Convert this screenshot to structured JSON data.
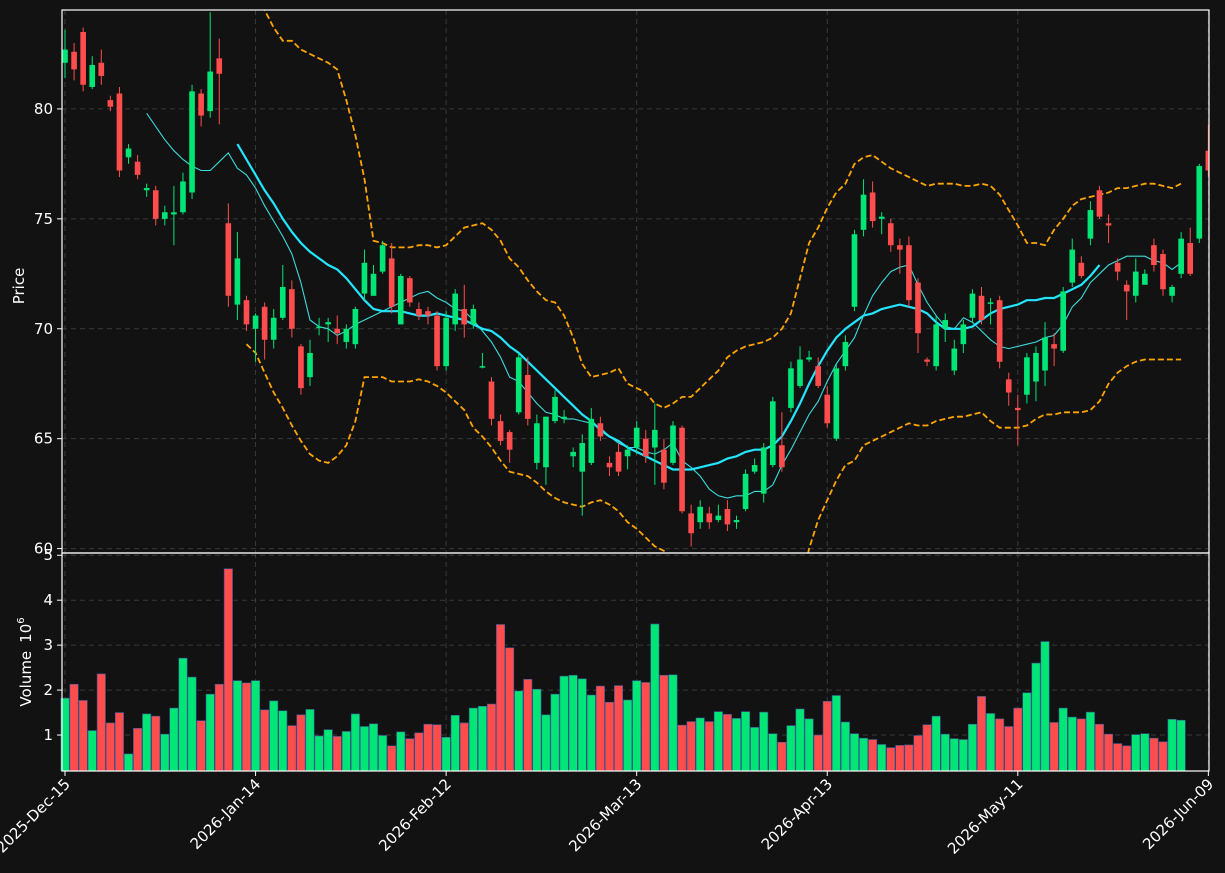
{
  "chart_data": {
    "type": "candlestick",
    "colors": {
      "background": "#121212",
      "up": "#00e676",
      "down": "#ff4d4d",
      "ma_fast": "#3cdcdc",
      "ma_slow": "#22e6ff",
      "bands": "#ffa500",
      "grid": "#3a3a3a",
      "axes": "#ffffff"
    },
    "price_panel": {
      "ylabel": "Price",
      "ylim": [
        59.8,
        84.5
      ],
      "yticks": [
        60,
        65,
        70,
        75,
        80
      ],
      "grid": true
    },
    "volume_panel": {
      "ylabel": "Volume",
      "scale_label": "10",
      "scale_exponent": "6",
      "ylim": [
        0.2,
        5.05
      ],
      "yticks": [
        1,
        2,
        3,
        4,
        5
      ],
      "grid": true
    },
    "x_ticks": [
      {
        "index": 0,
        "label": "2025-Dec-15"
      },
      {
        "index": 21,
        "label": "2026-Jan-14"
      },
      {
        "index": 42,
        "label": "2026-Feb-12"
      },
      {
        "index": 63,
        "label": "2026-Mar-13"
      },
      {
        "index": 84,
        "label": "2026-Apr-13"
      },
      {
        "index": 105,
        "label": "2026-May-11"
      },
      {
        "index": 126,
        "label": "2026-Jun-09"
      }
    ],
    "candles": [
      [
        82.1,
        82.7,
        83.6,
        81.4
      ],
      [
        82.6,
        81.8,
        83.0,
        81.3
      ],
      [
        83.5,
        81.1,
        83.7,
        80.8
      ],
      [
        81.0,
        82.0,
        82.4,
        80.9
      ],
      [
        82.1,
        81.5,
        82.7,
        81.1
      ],
      [
        80.4,
        80.1,
        80.6,
        79.9
      ],
      [
        80.7,
        77.2,
        81.0,
        76.9
      ],
      [
        77.8,
        78.2,
        78.4,
        77.5
      ],
      [
        77.6,
        77.0,
        77.9,
        76.8
      ],
      [
        76.3,
        76.4,
        76.6,
        76.0
      ],
      [
        76.3,
        75.0,
        76.5,
        74.7
      ],
      [
        75.0,
        75.3,
        75.6,
        74.7
      ],
      [
        75.2,
        75.3,
        76.5,
        73.8
      ],
      [
        75.3,
        76.7,
        77.1,
        75.2
      ],
      [
        76.2,
        80.8,
        81.1,
        75.9
      ],
      [
        80.7,
        79.7,
        80.9,
        79.2
      ],
      [
        79.9,
        81.7,
        84.4,
        79.6
      ],
      [
        82.3,
        81.6,
        83.2,
        79.3
      ],
      [
        74.8,
        71.5,
        75.7,
        71.0
      ],
      [
        71.1,
        73.2,
        74.4,
        70.4
      ],
      [
        71.3,
        70.2,
        71.5,
        69.9
      ],
      [
        70.0,
        70.6,
        70.7,
        68.5
      ],
      [
        71.0,
        69.5,
        71.2,
        68.6
      ],
      [
        69.5,
        70.5,
        70.9,
        69.1
      ],
      [
        70.5,
        71.9,
        72.9,
        70.4
      ],
      [
        71.8,
        70.0,
        72.2,
        69.6
      ],
      [
        69.2,
        67.3,
        69.3,
        67.0
      ],
      [
        67.8,
        68.9,
        69.5,
        67.4
      ],
      [
        70.1,
        70.1,
        70.5,
        69.7
      ],
      [
        70.2,
        70.3,
        70.5,
        69.4
      ],
      [
        70.0,
        69.8,
        70.6,
        69.3
      ],
      [
        69.4,
        70.0,
        70.2,
        69.1
      ],
      [
        69.3,
        70.9,
        71.0,
        69.1
      ],
      [
        71.6,
        73.0,
        73.6,
        71.3
      ],
      [
        71.5,
        72.5,
        72.9,
        71.5
      ],
      [
        72.6,
        73.8,
        74.0,
        72.5
      ],
      [
        73.2,
        71.0,
        73.9,
        70.7
      ],
      [
        70.2,
        72.4,
        72.5,
        70.2
      ],
      [
        72.3,
        71.2,
        72.4,
        71.0
      ],
      [
        70.9,
        70.6,
        71.2,
        70.4
      ],
      [
        70.8,
        70.6,
        71.0,
        70.2
      ],
      [
        70.6,
        68.3,
        70.8,
        68.1
      ],
      [
        68.3,
        70.5,
        70.8,
        68.1
      ],
      [
        70.2,
        71.6,
        71.8,
        69.9
      ],
      [
        70.9,
        70.2,
        72.0,
        69.6
      ],
      [
        70.2,
        70.9,
        71.1,
        70.0
      ],
      [
        68.3,
        68.3,
        68.9,
        68.2
      ],
      [
        67.6,
        65.9,
        67.8,
        65.6
      ],
      [
        65.8,
        64.9,
        66.1,
        64.7
      ],
      [
        65.3,
        64.5,
        65.4,
        63.9
      ],
      [
        66.2,
        68.7,
        68.9,
        66.1
      ],
      [
        67.9,
        65.9,
        68.7,
        65.6
      ],
      [
        63.9,
        65.7,
        66.1,
        63.6
      ],
      [
        63.7,
        66.0,
        66.0,
        62.9
      ],
      [
        65.8,
        66.9,
        67.2,
        65.7
      ],
      [
        65.9,
        66.0,
        66.3,
        65.7
      ],
      [
        64.2,
        64.4,
        64.6,
        63.7
      ],
      [
        63.5,
        64.8,
        65.2,
        61.5
      ],
      [
        63.9,
        65.9,
        66.4,
        63.8
      ],
      [
        65.7,
        65.1,
        66.0,
        64.9
      ],
      [
        63.9,
        63.7,
        64.2,
        63.3
      ],
      [
        64.4,
        63.5,
        64.8,
        63.3
      ],
      [
        64.2,
        64.5,
        64.7,
        63.6
      ],
      [
        64.6,
        65.5,
        65.8,
        64.3
      ],
      [
        65.0,
        64.2,
        65.4,
        63.9
      ],
      [
        64.6,
        65.4,
        66.6,
        62.9
      ],
      [
        64.5,
        63.0,
        65.0,
        62.7
      ],
      [
        63.9,
        65.6,
        65.8,
        63.8
      ],
      [
        65.5,
        61.7,
        65.6,
        61.6
      ],
      [
        61.6,
        60.7,
        62.0,
        60.1
      ],
      [
        61.2,
        61.9,
        62.2,
        60.9
      ],
      [
        61.6,
        61.2,
        61.9,
        60.9
      ],
      [
        61.3,
        61.5,
        62.0,
        61.2
      ],
      [
        61.8,
        61.1,
        62.2,
        60.8
      ],
      [
        61.2,
        61.3,
        61.5,
        60.9
      ],
      [
        61.8,
        63.4,
        63.6,
        61.7
      ],
      [
        63.5,
        63.8,
        64.1,
        63.4
      ],
      [
        62.5,
        64.6,
        64.8,
        62.1
      ],
      [
        63.8,
        66.7,
        66.9,
        63.7
      ],
      [
        64.7,
        63.7,
        66.2,
        63.5
      ],
      [
        66.4,
        68.2,
        68.5,
        66.2
      ],
      [
        67.4,
        68.6,
        69.2,
        67.3
      ],
      [
        68.6,
        68.7,
        69.0,
        68.5
      ],
      [
        68.3,
        67.4,
        68.7,
        67.3
      ],
      [
        67.0,
        65.7,
        67.4,
        65.5
      ],
      [
        65.0,
        68.2,
        68.4,
        64.9
      ],
      [
        68.3,
        69.4,
        69.7,
        68.1
      ],
      [
        71.0,
        74.3,
        74.5,
        70.8
      ],
      [
        74.5,
        76.1,
        76.8,
        74.2
      ],
      [
        76.2,
        74.9,
        76.7,
        74.6
      ],
      [
        75.0,
        75.1,
        75.3,
        74.3
      ],
      [
        74.8,
        73.8,
        75.0,
        73.5
      ],
      [
        73.8,
        73.6,
        74.1,
        72.5
      ],
      [
        73.8,
        71.3,
        74.2,
        71.0
      ],
      [
        72.1,
        69.8,
        72.3,
        68.9
      ],
      [
        68.6,
        68.5,
        68.7,
        68.3
      ],
      [
        68.3,
        70.2,
        70.6,
        68.1
      ],
      [
        70.0,
        70.4,
        70.7,
        69.4
      ],
      [
        68.1,
        69.1,
        69.5,
        67.9
      ],
      [
        69.3,
        70.2,
        70.4,
        68.9
      ],
      [
        70.5,
        71.6,
        71.8,
        70.3
      ],
      [
        71.5,
        70.4,
        71.9,
        70.2
      ],
      [
        71.2,
        71.2,
        71.4,
        70.2
      ],
      [
        71.3,
        68.5,
        71.5,
        68.2
      ],
      [
        67.7,
        67.1,
        68.0,
        66.5
      ],
      [
        66.4,
        66.3,
        67.0,
        64.7
      ],
      [
        67.0,
        68.7,
        68.9,
        66.6
      ],
      [
        67.6,
        68.9,
        69.2,
        66.7
      ],
      [
        68.1,
        69.6,
        70.3,
        67.4
      ],
      [
        69.3,
        69.1,
        69.8,
        68.3
      ],
      [
        69.0,
        71.7,
        71.9,
        68.9
      ],
      [
        72.1,
        73.6,
        74.1,
        71.9
      ],
      [
        73.0,
        72.4,
        73.3,
        72.3
      ],
      [
        74.1,
        75.4,
        75.8,
        73.8
      ],
      [
        76.3,
        75.1,
        76.5,
        75.0
      ],
      [
        74.8,
        74.7,
        75.2,
        73.9
      ],
      [
        73.0,
        72.6,
        73.2,
        72.2
      ],
      [
        72.0,
        71.7,
        72.2,
        70.4
      ],
      [
        71.5,
        72.6,
        73.2,
        71.2
      ],
      [
        72.0,
        72.5,
        72.7,
        72.2
      ],
      [
        73.8,
        72.9,
        74.1,
        72.6
      ],
      [
        73.4,
        71.8,
        73.6,
        71.5
      ],
      [
        71.5,
        71.9,
        72.0,
        71.2
      ],
      [
        72.5,
        74.1,
        74.4,
        72.3
      ],
      [
        73.9,
        72.5,
        74.6,
        72.4
      ],
      [
        74.1,
        77.4,
        77.5,
        73.9
      ],
      [
        78.1,
        77.2,
        79.3,
        76.9
      ]
    ],
    "volume_millions": [
      1.82,
      2.13,
      1.77,
      1.1,
      2.36,
      1.27,
      1.5,
      0.58,
      1.15,
      1.47,
      1.42,
      1.02,
      1.6,
      2.71,
      2.29,
      1.32,
      1.91,
      2.13,
      4.7,
      2.21,
      2.16,
      2.21,
      1.56,
      1.76,
      1.54,
      1.21,
      1.45,
      1.57,
      0.98,
      1.12,
      0.97,
      1.08,
      1.47,
      1.19,
      1.25,
      0.99,
      0.76,
      1.07,
      0.92,
      1.05,
      1.24,
      1.23,
      0.95,
      1.44,
      1.27,
      1.6,
      1.64,
      1.69,
      3.46,
      2.94,
      1.98,
      2.24,
      2.02,
      1.45,
      1.91,
      2.31,
      2.33,
      2.25,
      1.89,
      2.09,
      1.73,
      2.1,
      1.78,
      2.21,
      2.17,
      3.47,
      2.33,
      2.34,
      1.22,
      1.3,
      1.38,
      1.3,
      1.52,
      1.46,
      1.37,
      1.52,
      1.17,
      1.51,
      1.03,
      0.84,
      1.21,
      1.58,
      1.36,
      1.0,
      1.75,
      1.88,
      1.29,
      1.03,
      0.93,
      0.9,
      0.79,
      0.72,
      0.77,
      0.78,
      0.99,
      1.23,
      1.42,
      1.02,
      0.92,
      0.9,
      1.24,
      1.86,
      1.48,
      1.36,
      1.19,
      1.6,
      1.94,
      2.6,
      3.08,
      1.28,
      1.6,
      1.4,
      1.36,
      1.51,
      1.24,
      1.02,
      0.81,
      0.76,
      1.01,
      1.03,
      0.93,
      0.85,
      1.35,
      1.33
    ],
    "ma_fast": [
      null,
      null,
      null,
      null,
      null,
      null,
      null,
      null,
      null,
      79.8,
      79.2,
      78.6,
      78.1,
      77.7,
      77.4,
      77.2,
      77.2,
      77.6,
      78.0,
      77.3,
      77.0,
      76.4,
      75.6,
      74.9,
      74.2,
      73.4,
      72.1,
      70.4,
      70.1,
      70.0,
      69.7,
      69.9,
      70.2,
      70.4,
      70.6,
      70.8,
      71.0,
      71.2,
      71.4,
      71.6,
      71.7,
      71.4,
      71.2,
      70.9,
      70.8,
      70.4,
      69.9,
      69.4,
      68.7,
      67.8,
      67.6,
      67.1,
      66.6,
      66.2,
      66.1,
      65.9,
      65.9,
      65.8,
      65.7,
      65.5,
      65.1,
      64.8,
      64.6,
      64.6,
      64.4,
      64.3,
      64.5,
      64.8,
      64.0,
      63.7,
      63.3,
      62.7,
      62.4,
      62.3,
      62.4,
      62.4,
      62.6,
      62.6,
      62.9,
      63.8,
      64.5,
      65.3,
      66.1,
      66.7,
      67.6,
      68.4,
      69.0,
      69.6,
      70.6,
      71.5,
      72.1,
      72.6,
      72.8,
      72.9,
      72.0,
      71.2,
      70.6,
      70.1,
      70.0,
      70.5,
      70.3,
      69.9,
      69.5,
      69.2,
      69.1,
      69.2,
      69.3,
      69.4,
      69.6,
      69.7,
      70.2,
      71.0,
      71.4,
      72.1,
      72.5,
      72.9,
      73.1,
      73.3,
      73.3,
      73.3,
      73.1,
      73.0,
      72.7,
      73.0
    ],
    "ma_slow": [
      null,
      null,
      null,
      null,
      null,
      null,
      null,
      null,
      null,
      null,
      null,
      null,
      null,
      null,
      null,
      null,
      null,
      null,
      null,
      78.4,
      77.7,
      77.0,
      76.3,
      75.7,
      75.0,
      74.4,
      73.9,
      73.5,
      73.2,
      72.9,
      72.7,
      72.3,
      71.8,
      71.3,
      70.9,
      70.8,
      70.8,
      70.8,
      70.7,
      70.6,
      70.6,
      70.7,
      70.6,
      70.5,
      70.4,
      70.2,
      70.0,
      69.9,
      69.6,
      69.2,
      68.9,
      68.5,
      68.1,
      67.7,
      67.3,
      66.9,
      66.5,
      66.1,
      65.8,
      65.4,
      65.1,
      64.9,
      64.6,
      64.4,
      64.2,
      64.0,
      63.8,
      63.6,
      63.6,
      63.6,
      63.7,
      63.8,
      63.9,
      64.1,
      64.2,
      64.4,
      64.5,
      64.5,
      64.7,
      65.1,
      65.8,
      66.6,
      67.5,
      68.3,
      69.0,
      69.6,
      70.0,
      70.3,
      70.6,
      70.7,
      70.9,
      71.0,
      71.1,
      71.0,
      70.9,
      70.7,
      70.3,
      70.0,
      70.0,
      70.0,
      70.1,
      70.4,
      70.7,
      70.9,
      71.0,
      71.1,
      71.3,
      71.3,
      71.4,
      71.4,
      71.6,
      71.8,
      72.0,
      72.4,
      72.9
    ],
    "bollinger_upper": [
      null,
      null,
      null,
      null,
      null,
      null,
      null,
      null,
      null,
      null,
      null,
      null,
      null,
      null,
      null,
      null,
      null,
      null,
      null,
      null,
      87.0,
      85.0,
      84.5,
      83.7,
      83.1,
      83.1,
      82.7,
      82.5,
      82.3,
      82.1,
      81.8,
      80.4,
      78.8,
      76.8,
      74.0,
      73.9,
      73.7,
      73.7,
      73.7,
      73.8,
      73.8,
      73.7,
      73.8,
      74.2,
      74.6,
      74.7,
      74.8,
      74.5,
      74.0,
      73.2,
      72.8,
      72.2,
      71.7,
      71.3,
      71.2,
      70.6,
      69.6,
      68.4,
      67.8,
      67.9,
      68.0,
      68.2,
      67.5,
      67.3,
      67.1,
      66.6,
      66.4,
      66.6,
      66.9,
      66.9,
      67.3,
      67.7,
      68.1,
      68.7,
      69.0,
      69.2,
      69.3,
      69.4,
      69.6,
      70.0,
      70.7,
      72.3,
      73.9,
      74.6,
      75.5,
      76.2,
      76.6,
      77.5,
      77.8,
      77.9,
      77.6,
      77.3,
      77.1,
      76.9,
      76.7,
      76.5,
      76.6,
      76.6,
      76.6,
      76.5,
      76.5,
      76.6,
      76.5,
      76.1,
      75.4,
      74.7,
      73.9,
      73.9,
      73.8,
      74.5,
      75.0,
      75.6,
      75.9,
      76.0,
      76.1,
      76.2,
      76.4,
      76.4,
      76.5,
      76.6,
      76.6,
      76.5,
      76.4,
      76.6
    ],
    "bollinger_lower": [
      null,
      null,
      null,
      null,
      null,
      null,
      null,
      null,
      null,
      null,
      null,
      null,
      null,
      null,
      null,
      null,
      null,
      null,
      null,
      null,
      69.3,
      68.9,
      68.0,
      67.1,
      66.4,
      65.6,
      64.9,
      64.3,
      64.0,
      63.9,
      64.2,
      64.7,
      65.8,
      67.8,
      67.8,
      67.8,
      67.6,
      67.6,
      67.6,
      67.7,
      67.6,
      67.4,
      67.1,
      66.7,
      66.3,
      65.5,
      65.1,
      64.6,
      64.0,
      63.5,
      63.4,
      63.3,
      63.0,
      62.6,
      62.3,
      62.1,
      62.0,
      61.9,
      62.1,
      62.2,
      62.0,
      61.7,
      61.2,
      60.9,
      60.5,
      60.1,
      59.9,
      59.4,
      58.8,
      57.9,
      56.5,
      55.2,
      54.2,
      53.5,
      52.8,
      52.1,
      51.6,
      51.3,
      52.1,
      54.0,
      56.2,
      58.1,
      60.0,
      61.3,
      62.2,
      63.1,
      63.8,
      64.0,
      64.7,
      64.9,
      65.1,
      65.3,
      65.5,
      65.7,
      65.6,
      65.6,
      65.8,
      65.9,
      66.0,
      66.0,
      66.1,
      66.2,
      65.8,
      65.5,
      65.5,
      65.5,
      65.6,
      65.9,
      66.1,
      66.1,
      66.2,
      66.2,
      66.2,
      66.3,
      66.7,
      67.5,
      68.0,
      68.3,
      68.5,
      68.6,
      68.6,
      68.6,
      68.6,
      68.6
    ]
  }
}
